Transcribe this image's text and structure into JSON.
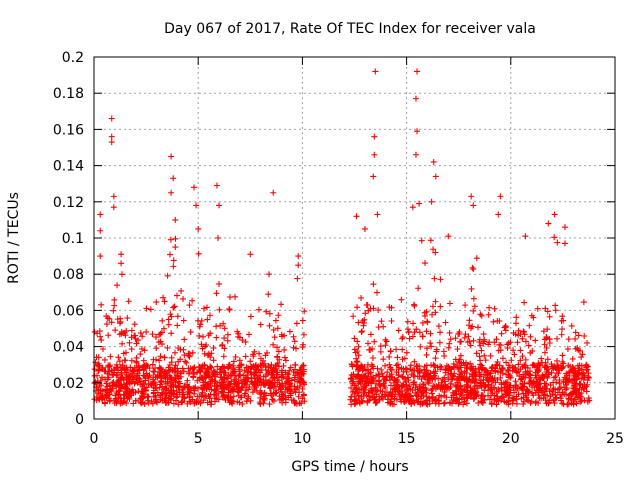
{
  "chart_data": {
    "type": "scatter",
    "title": "Day 067 of 2017, Rate Of TEC Index for receiver vala",
    "xlabel": "GPS time / hours",
    "ylabel": "ROTI / TECUs",
    "xlim": [
      0,
      25
    ],
    "ylim": [
      0,
      0.2
    ],
    "grid": true,
    "legend": "none",
    "marker": "plus",
    "color": "#ff0000",
    "x_ticks": [
      0,
      5,
      10,
      15,
      20,
      25
    ],
    "x_tick_labels": [
      "0",
      "5",
      "10",
      "15",
      "20",
      "25"
    ],
    "y_ticks": [
      0,
      0.02,
      0.04,
      0.06,
      0.08,
      0.1,
      0.12,
      0.14,
      0.16,
      0.18,
      0.2
    ],
    "y_tick_labels": [
      "0",
      "0.02",
      "0.04",
      "0.06",
      "0.08",
      "0.1",
      "0.12",
      "0.14",
      "0.16",
      "0.18",
      "0.2"
    ],
    "observed_intervals_hours": [
      [
        0,
        10.1
      ],
      [
        12.3,
        23.8
      ]
    ],
    "peak_points": [
      {
        "x": 0.85,
        "y": 0.166
      },
      {
        "x": 0.85,
        "y": 0.156
      },
      {
        "x": 0.85,
        "y": 0.153
      },
      {
        "x": 0.95,
        "y": 0.123
      },
      {
        "x": 0.95,
        "y": 0.117
      },
      {
        "x": 0.3,
        "y": 0.113
      },
      {
        "x": 0.3,
        "y": 0.104
      },
      {
        "x": 0.3,
        "y": 0.09
      },
      {
        "x": 1.3,
        "y": 0.091
      },
      {
        "x": 1.3,
        "y": 0.086
      },
      {
        "x": 3.7,
        "y": 0.145
      },
      {
        "x": 3.8,
        "y": 0.133
      },
      {
        "x": 3.7,
        "y": 0.125
      },
      {
        "x": 3.9,
        "y": 0.11
      },
      {
        "x": 3.9,
        "y": 0.095
      },
      {
        "x": 4.8,
        "y": 0.128
      },
      {
        "x": 4.9,
        "y": 0.118
      },
      {
        "x": 5.0,
        "y": 0.105
      },
      {
        "x": 5.9,
        "y": 0.129
      },
      {
        "x": 6.0,
        "y": 0.118
      },
      {
        "x": 5.95,
        "y": 0.1
      },
      {
        "x": 7.5,
        "y": 0.091
      },
      {
        "x": 8.6,
        "y": 0.125
      },
      {
        "x": 8.4,
        "y": 0.08
      },
      {
        "x": 9.8,
        "y": 0.09
      },
      {
        "x": 9.8,
        "y": 0.085
      },
      {
        "x": 12.6,
        "y": 0.112
      },
      {
        "x": 13.0,
        "y": 0.105
      },
      {
        "x": 13.5,
        "y": 0.192
      },
      {
        "x": 13.45,
        "y": 0.156
      },
      {
        "x": 13.45,
        "y": 0.146
      },
      {
        "x": 13.4,
        "y": 0.134
      },
      {
        "x": 13.6,
        "y": 0.113
      },
      {
        "x": 15.5,
        "y": 0.192
      },
      {
        "x": 15.45,
        "y": 0.177
      },
      {
        "x": 15.5,
        "y": 0.159
      },
      {
        "x": 15.45,
        "y": 0.146
      },
      {
        "x": 15.6,
        "y": 0.119
      },
      {
        "x": 15.3,
        "y": 0.117
      },
      {
        "x": 16.3,
        "y": 0.142
      },
      {
        "x": 16.4,
        "y": 0.134
      },
      {
        "x": 16.2,
        "y": 0.12
      },
      {
        "x": 17.0,
        "y": 0.101
      },
      {
        "x": 18.1,
        "y": 0.123
      },
      {
        "x": 18.2,
        "y": 0.118
      },
      {
        "x": 19.5,
        "y": 0.123
      },
      {
        "x": 19.4,
        "y": 0.113
      },
      {
        "x": 20.7,
        "y": 0.101
      },
      {
        "x": 21.8,
        "y": 0.108
      },
      {
        "x": 22.1,
        "y": 0.113
      },
      {
        "x": 22.6,
        "y": 0.106
      },
      {
        "x": 22.6,
        "y": 0.097
      }
    ]
  }
}
